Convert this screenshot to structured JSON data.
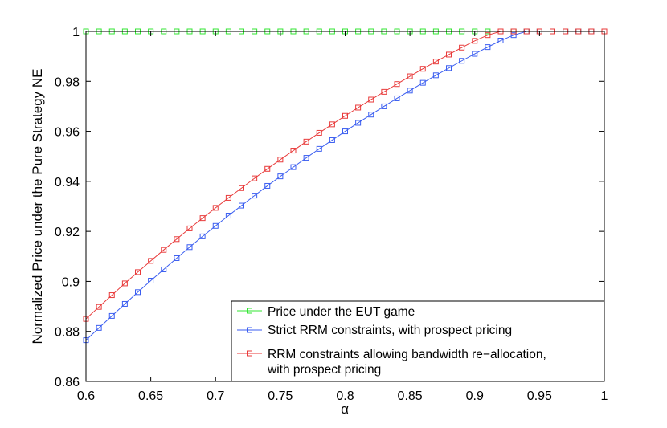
{
  "chart_data": {
    "type": "line",
    "xlabel": "α",
    "ylabel": "Normalized Price under the Pure Strategy NE",
    "xlim": [
      0.6,
      1.0
    ],
    "ylim": [
      0.86,
      1.0
    ],
    "xticks": [
      0.6,
      0.65,
      0.7,
      0.75,
      0.8,
      0.85,
      0.9,
      0.95,
      1.0
    ],
    "xtick_labels": [
      "0.6",
      "0.65",
      "0.7",
      "0.75",
      "0.8",
      "0.85",
      "0.9",
      "0.95",
      "1"
    ],
    "yticks": [
      0.86,
      0.88,
      0.9,
      0.92,
      0.94,
      0.96,
      0.98,
      1.0
    ],
    "ytick_labels": [
      "0.86",
      "0.88",
      "0.9",
      "0.92",
      "0.94",
      "0.96",
      "0.98",
      "1"
    ],
    "grid": false,
    "legend_position": "bottom-right",
    "marker": "square",
    "x": [
      0.6,
      0.61,
      0.62,
      0.63,
      0.64,
      0.65,
      0.66,
      0.67,
      0.68,
      0.69,
      0.7,
      0.71,
      0.72,
      0.73,
      0.74,
      0.75,
      0.76,
      0.77,
      0.78,
      0.79,
      0.8,
      0.81,
      0.82,
      0.83,
      0.84,
      0.85,
      0.86,
      0.87,
      0.88,
      0.89,
      0.9,
      0.91,
      0.92,
      0.93,
      0.94,
      0.95,
      0.96,
      0.97,
      0.98,
      0.99,
      1.0
    ],
    "series": [
      {
        "name": "Price under the EUT game",
        "color": "#33e633",
        "values": [
          1,
          1,
          1,
          1,
          1,
          1,
          1,
          1,
          1,
          1,
          1,
          1,
          1,
          1,
          1,
          1,
          1,
          1,
          1,
          1,
          1,
          1,
          1,
          1,
          1,
          1,
          1,
          1,
          1,
          1,
          1,
          1,
          1,
          1,
          1,
          1,
          1,
          1,
          1,
          1,
          1
        ]
      },
      {
        "name": "Strict RRM constraints, with prospect pricing",
        "color": "#3b5ef0",
        "values": [
          0.8765,
          0.8814,
          0.8862,
          0.891,
          0.8957,
          0.9003,
          0.9048,
          0.9093,
          0.9137,
          0.918,
          0.9222,
          0.9263,
          0.9303,
          0.9343,
          0.9382,
          0.942,
          0.9457,
          0.9494,
          0.953,
          0.9565,
          0.96,
          0.9634,
          0.9667,
          0.97,
          0.9732,
          0.9763,
          0.9794,
          0.9824,
          0.9853,
          0.9882,
          0.991,
          0.9937,
          0.9963,
          0.9985,
          1.0,
          1.0,
          1.0,
          1.0,
          1.0,
          1.0,
          1.0
        ]
      },
      {
        "name": "RRM constraints allowing bandwidth re−allocation, with prospect pricing",
        "color": "#e83a3a",
        "values": [
          0.885,
          0.8898,
          0.8945,
          0.8992,
          0.9037,
          0.9082,
          0.9126,
          0.9169,
          0.9212,
          0.9253,
          0.9294,
          0.9334,
          0.9373,
          0.9412,
          0.945,
          0.9487,
          0.9523,
          0.9559,
          0.9594,
          0.9628,
          0.9662,
          0.9695,
          0.9727,
          0.9758,
          0.9789,
          0.982,
          0.985,
          0.9879,
          0.9907,
          0.9935,
          0.9962,
          0.9985,
          1.0,
          1.0,
          1.0,
          1.0,
          1.0,
          1.0,
          1.0,
          1.0,
          1.0
        ]
      }
    ]
  }
}
